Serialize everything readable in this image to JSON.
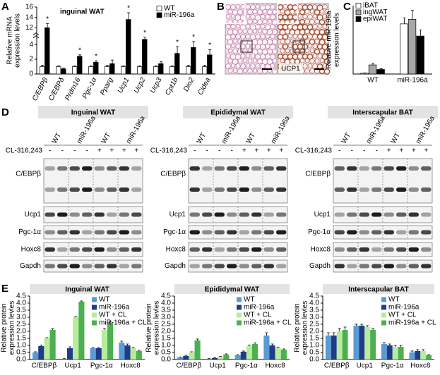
{
  "letters": [
    "A",
    "B",
    "C",
    "D",
    "E"
  ],
  "histology": {
    "stain_label": "UCP1"
  },
  "blots": {
    "treatment": "CL-316,243",
    "proteins": [
      "C/EBPβ",
      "Ucp1",
      "Pgc-1α",
      "Hoxc8",
      "Gapdh"
    ],
    "panels": [
      {
        "title": "Inguinal WAT",
        "groups": [
          "WT",
          "miR-196a",
          "WT",
          "miR-196a"
        ],
        "signs": [
          "-",
          "-",
          "-",
          "-",
          "+",
          "+",
          "+",
          "+"
        ]
      },
      {
        "title": "Epididymal WAT",
        "groups": [
          "WT",
          "miR-196a",
          "WT",
          "miR-196a"
        ],
        "signs": [
          "-",
          "-",
          "-",
          "-",
          "+",
          "+",
          "+",
          "+"
        ]
      },
      {
        "title": "Interscapular BAT",
        "groups": [
          "WT",
          "miR-196a",
          "WT",
          "miR-196a"
        ],
        "signs": [
          "-",
          "-",
          "-",
          "-",
          "+",
          "+",
          "+",
          "+"
        ]
      }
    ]
  },
  "chart_data": [
    {
      "type": "bar",
      "title": "inguinal WAT",
      "y_label": [
        "Relative mRNA",
        "expression levels"
      ],
      "categories": [
        "C/EBPβ",
        "C/EBPδ",
        "Prdm16",
        "Pgc-1α",
        "Pparg",
        "Ucp1",
        "Ucp2",
        "Ucp3",
        "Cpt1b",
        "Dio2",
        "Cidea"
      ],
      "series": [
        {
          "name": "WT",
          "color": "#ffffff",
          "values": [
            1,
            1,
            1,
            1,
            1,
            1,
            1,
            1,
            1,
            1,
            1
          ],
          "errors": [
            0.2,
            0.1,
            0.1,
            0.1,
            0.2,
            0.1,
            0.1,
            0.1,
            0.1,
            0.2,
            0.2
          ]
        },
        {
          "name": "miR-196a",
          "color": "#000000",
          "values": [
            12,
            0.7,
            2.4,
            1.6,
            1.4,
            13.6,
            4.7,
            1.4,
            2.8,
            3.6,
            2.6
          ],
          "errors": [
            0.8,
            0.1,
            0.2,
            0.2,
            0.5,
            1.3,
            0.3,
            0.3,
            0.9,
            0.8,
            0.7
          ]
        }
      ],
      "annotations": [
        "*",
        null,
        "*",
        "*",
        null,
        "*",
        "*",
        null,
        "*",
        "*",
        "*"
      ],
      "ylim": [
        0,
        16
      ],
      "ybreak": [
        5,
        11
      ],
      "yticks": [
        0,
        2,
        4,
        12,
        14,
        16
      ],
      "legend": "upper right"
    },
    {
      "type": "bar",
      "y_label": [
        "Relative miR-196a",
        "expression levels"
      ],
      "categories": [
        "WT",
        "miR-196a"
      ],
      "series": [
        {
          "name": "iBAT",
          "color": "#ffffff",
          "values": [
            0.05,
            3.3
          ],
          "errors": [
            0.02,
            0.4
          ]
        },
        {
          "name": "ingWAT",
          "color": "#a6a6a6",
          "values": [
            0.6,
            3.6
          ],
          "errors": [
            0.1,
            0.6
          ]
        },
        {
          "name": "epiWAT",
          "color": "#000000",
          "values": [
            0.3,
            2.5
          ],
          "errors": [
            0.05,
            0.4
          ]
        }
      ],
      "ylim": [
        0,
        4.5
      ],
      "legend": "upper left"
    },
    {
      "type": "bar",
      "title": "Inguinal WAT",
      "y_label": [
        "Relative protein",
        "expression levles"
      ],
      "categories": [
        "C/EBPβ",
        "Ucp1",
        "Pgc-1α",
        "Hoxc8"
      ],
      "series": [
        {
          "name": "WT",
          "color": "#5b9bd5",
          "values": [
            0.5,
            0.05,
            0.8,
            1.2
          ],
          "errors": [
            0.05,
            0.02,
            0.05,
            0.1
          ]
        },
        {
          "name": "miR-196a",
          "color": "#1f3c88",
          "values": [
            0.95,
            0.8,
            0.8,
            1.0
          ],
          "errors": [
            0.08,
            0.1,
            0.05,
            0.1
          ]
        },
        {
          "name": "WT + CL",
          "color": "#b8ec9c",
          "values": [
            1.5,
            3.0,
            2.1,
            0.8
          ],
          "errors": [
            0.05,
            0.05,
            0.08,
            0.05
          ]
        },
        {
          "name": "miR-196a + CL",
          "color": "#4caf50",
          "values": [
            2.1,
            4.1,
            2.6,
            0.6
          ],
          "errors": [
            0.08,
            0.05,
            0.08,
            0.05
          ]
        }
      ],
      "ylim": [
        0,
        4.5
      ],
      "yticks": [
        {
          "value": 0,
          "label": "0.0"
        },
        {
          "value": 0.5,
          "label": "0.5"
        },
        {
          "value": 1,
          "label": "1.0"
        },
        {
          "value": 1.5,
          "label": "1.5"
        },
        {
          "value": 2,
          "label": "2.0"
        },
        {
          "value": 2.5,
          "label": "2.5"
        },
        {
          "value": 3,
          "label": "3.0"
        },
        {
          "value": 3.5,
          "label": "3.5"
        },
        {
          "value": 4,
          "label": "4.0"
        },
        {
          "value": 4.5,
          "label": "4.5"
        }
      ],
      "legend": "upper right"
    },
    {
      "type": "bar",
      "title": "Epididymal WAT",
      "y_label": [
        "Relative protein",
        "expression levles"
      ],
      "categories": [
        "C/EBPβ",
        "Ucp1",
        "Pgc-1α",
        "Hoxc8"
      ],
      "series": [
        {
          "name": "WT",
          "color": "#5b9bd5",
          "values": [
            0.15,
            0.05,
            0.3,
            1.7
          ],
          "errors": [
            0.03,
            0.02,
            0.05,
            0.2
          ]
        },
        {
          "name": "miR-196a",
          "color": "#1f3c88",
          "values": [
            0.25,
            0.1,
            0.55,
            1.0
          ],
          "errors": [
            0.05,
            0.02,
            0.05,
            0.1
          ]
        },
        {
          "name": "WT + CL",
          "color": "#b8ec9c",
          "values": [
            0.5,
            0.2,
            0.95,
            0.8
          ],
          "errors": [
            0.05,
            0.03,
            0.08,
            0.08
          ]
        },
        {
          "name": "miR-196a + CL",
          "color": "#4caf50",
          "values": [
            1.35,
            0.35,
            1.1,
            0.7
          ],
          "errors": [
            0.1,
            0.05,
            0.08,
            0.05
          ]
        }
      ],
      "ylim": [
        0,
        4.5
      ],
      "yticks": [
        {
          "value": 0,
          "label": "0.0"
        },
        {
          "value": 0.5,
          "label": "0.5"
        },
        {
          "value": 1,
          "label": "1.0"
        },
        {
          "value": 1.5,
          "label": "1.5"
        },
        {
          "value": 2,
          "label": "2.0"
        },
        {
          "value": 2.5,
          "label": "2.5"
        },
        {
          "value": 3,
          "label": "3.0"
        },
        {
          "value": 3.5,
          "label": "3.5"
        },
        {
          "value": 4,
          "label": "4.0"
        },
        {
          "value": 4.5,
          "label": "4.5"
        }
      ],
      "legend": "upper right"
    },
    {
      "type": "bar",
      "title": "Interscapular BAT",
      "y_label": [
        "Relative protein",
        "expression levles"
      ],
      "categories": [
        "C/EBPβ",
        "Ucp1",
        "Pgc-1α",
        "Hoxc8"
      ],
      "series": [
        {
          "name": "WT",
          "color": "#5b9bd5",
          "values": [
            1.7,
            2.4,
            1.1,
            0.5
          ],
          "errors": [
            0.2,
            0.1,
            0.1,
            0.1
          ]
        },
        {
          "name": "miR-196a",
          "color": "#1f3c88",
          "values": [
            1.7,
            2.4,
            1.0,
            0.6
          ],
          "errors": [
            0.2,
            0.1,
            0.1,
            0.1
          ]
        },
        {
          "name": "WT + CL",
          "color": "#b8ec9c",
          "values": [
            2.0,
            2.3,
            0.9,
            0.6
          ],
          "errors": [
            0.2,
            0.1,
            0.1,
            0.1
          ]
        },
        {
          "name": "miR-196a + CL",
          "color": "#4caf50",
          "values": [
            2.1,
            2.1,
            0.9,
            0.3
          ],
          "errors": [
            0.2,
            0.1,
            0.1,
            0.05
          ]
        }
      ],
      "ylim": [
        0,
        4.5
      ],
      "yticks": [
        {
          "value": 0,
          "label": "0.0"
        },
        {
          "value": 0.5,
          "label": "0.5"
        },
        {
          "value": 1,
          "label": "1.0"
        },
        {
          "value": 1.5,
          "label": "1.5"
        },
        {
          "value": 2,
          "label": "2.0"
        },
        {
          "value": 2.5,
          "label": "2.5"
        },
        {
          "value": 3,
          "label": "3.0"
        },
        {
          "value": 3.5,
          "label": "3.5"
        },
        {
          "value": 4,
          "label": "4.0"
        },
        {
          "value": 4.5,
          "label": "4.5"
        }
      ],
      "legend": "upper right"
    }
  ]
}
